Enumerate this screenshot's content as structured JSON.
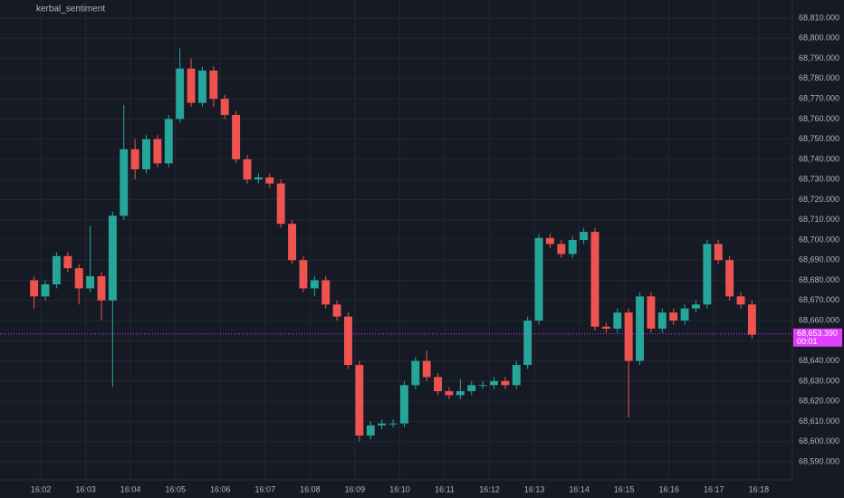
{
  "chart_data": {
    "type": "candlestick",
    "title": "kerbal_sentiment",
    "up_color": "#26a69a",
    "down_color": "#ef5350",
    "x": [
      1.85,
      2.1,
      2.35,
      2.6,
      2.85,
      3.1,
      3.35,
      3.6,
      3.85,
      4.1,
      4.35,
      4.6,
      4.85,
      5.1,
      5.35,
      5.6,
      5.85,
      6.1,
      6.35,
      6.6,
      6.85,
      7.1,
      7.35,
      7.6,
      7.85,
      8.1,
      8.35,
      8.6,
      8.85,
      9.1,
      9.35,
      9.6,
      9.85,
      10.1,
      10.35,
      10.6,
      10.85,
      11.1,
      11.35,
      11.6,
      11.85,
      12.1,
      12.35,
      12.6,
      12.85,
      13.1,
      13.35,
      13.6,
      13.85,
      14.1,
      14.35,
      14.6,
      14.85,
      15.1,
      15.35,
      15.6,
      15.85,
      16.1,
      16.35,
      16.6,
      16.85,
      17.1,
      17.35,
      17.6,
      17.85
    ],
    "open": [
      68680,
      68672,
      68678,
      68692,
      68686,
      68676,
      68682,
      68670,
      68712,
      68745,
      68735,
      68750,
      68738,
      68760,
      68785,
      68768,
      68784,
      68770,
      68762,
      68740,
      68730,
      68731,
      68728,
      68708,
      68690,
      68676,
      68680,
      68668,
      68662,
      68638,
      68603,
      68608,
      68609,
      68609,
      68628,
      68640,
      68632,
      68625,
      68623,
      68625,
      68628,
      68628,
      68630,
      68628,
      68638,
      68660,
      68701,
      68698,
      68693,
      68700,
      68704,
      68657,
      68656,
      68664,
      68640,
      68672,
      68656,
      68664,
      68660,
      68666,
      68668,
      68698,
      68690,
      68672,
      68668
    ],
    "high": [
      68682,
      68680,
      68694,
      68694,
      68688,
      68707,
      68684,
      68714,
      68767,
      68750,
      68752,
      68752,
      68762,
      68795,
      68790,
      68786,
      68786,
      68772,
      68764,
      68742,
      68733,
      68733,
      68730,
      68710,
      68692,
      68682,
      68682,
      68670,
      68664,
      68640,
      68610,
      68611,
      68611,
      68630,
      68642,
      68645,
      68634,
      68627,
      68631,
      68630,
      68630,
      68632,
      68632,
      68640,
      68662,
      68703,
      68703,
      68700,
      68702,
      68706,
      68706,
      68659,
      68666,
      68666,
      68674,
      68674,
      68666,
      68666,
      68668,
      68670,
      68700,
      68700,
      68692,
      68674,
      68670
    ],
    "low": [
      68666,
      68670,
      68676,
      68684,
      68668,
      68674,
      68660,
      68627,
      68710,
      68730,
      68733,
      68736,
      68736,
      68758,
      68766,
      68766,
      68766,
      68760,
      68738,
      68728,
      68728,
      68726,
      68706,
      68688,
      68674,
      68672,
      68666,
      68660,
      68636,
      68600,
      68601,
      68606,
      68607,
      68607,
      68626,
      68630,
      68623,
      68621,
      68621,
      68623,
      68626,
      68626,
      68626,
      68626,
      68636,
      68658,
      68696,
      68691,
      68691,
      68698,
      68655,
      68654,
      68654,
      68612,
      68638,
      68654,
      68654,
      68658,
      68658,
      68664,
      68666,
      68688,
      68670,
      68666,
      68651
    ],
    "close": [
      68672,
      68678,
      68692,
      68686,
      68676,
      68682,
      68670,
      68712,
      68745,
      68735,
      68750,
      68738,
      68760,
      68785,
      68768,
      68784,
      68770,
      68762,
      68740,
      68730,
      68731,
      68728,
      68708,
      68690,
      68676,
      68680,
      68668,
      68662,
      68638,
      68603,
      68608,
      68609,
      68609,
      68628,
      68640,
      68632,
      68625,
      68623,
      68625,
      68628,
      68628,
      68630,
      68628,
      68638,
      68660,
      68701,
      68698,
      68693,
      68700,
      68704,
      68657,
      68656,
      68664,
      68640,
      68672,
      68656,
      68664,
      68660,
      68666,
      68668,
      68698,
      68690,
      68672,
      68668,
      68653
    ],
    "xlim": [
      1.09,
      18.75
    ],
    "xticks": [
      {
        "value": 2,
        "label": "16:02"
      },
      {
        "value": 3,
        "label": "16:03"
      },
      {
        "value": 4,
        "label": "16:04"
      },
      {
        "value": 5,
        "label": "16:05"
      },
      {
        "value": 6,
        "label": "16:06"
      },
      {
        "value": 7,
        "label": "16:07"
      },
      {
        "value": 8,
        "label": "16:08"
      },
      {
        "value": 9,
        "label": "16:09"
      },
      {
        "value": 10,
        "label": "16:10"
      },
      {
        "value": 11,
        "label": "16:11"
      },
      {
        "value": 12,
        "label": "16:12"
      },
      {
        "value": 13,
        "label": "16:13"
      },
      {
        "value": 14,
        "label": "16:14"
      },
      {
        "value": 15,
        "label": "16:15"
      },
      {
        "value": 16,
        "label": "16:16"
      },
      {
        "value": 17,
        "label": "16:17"
      },
      {
        "value": 18,
        "label": "16:18"
      }
    ],
    "ylim": [
      68581,
      68819
    ],
    "yticks": [
      {
        "value": 68590,
        "label": "68,590.000"
      },
      {
        "value": 68600,
        "label": "68,600.000"
      },
      {
        "value": 68610,
        "label": "68,610.000"
      },
      {
        "value": 68620,
        "label": "68,620.000"
      },
      {
        "value": 68630,
        "label": "68,630.000"
      },
      {
        "value": 68640,
        "label": "68,640.000"
      },
      {
        "value": 68650,
        "label": "68,650.000"
      },
      {
        "value": 68660,
        "label": "68,660.000"
      },
      {
        "value": 68670,
        "label": "68,670.000"
      },
      {
        "value": 68680,
        "label": "68,680.000"
      },
      {
        "value": 68690,
        "label": "68,690.000"
      },
      {
        "value": 68700,
        "label": "68,700.000"
      },
      {
        "value": 68710,
        "label": "68,710.000"
      },
      {
        "value": 68720,
        "label": "68,720.000"
      },
      {
        "value": 68730,
        "label": "68,730.000"
      },
      {
        "value": 68740,
        "label": "68,740.000"
      },
      {
        "value": 68750,
        "label": "68,750.000"
      },
      {
        "value": 68760,
        "label": "68,760.000"
      },
      {
        "value": 68770,
        "label": "68,770.000"
      },
      {
        "value": 68780,
        "label": "68,780.000"
      },
      {
        "value": 68790,
        "label": "68,790.000"
      },
      {
        "value": 68800,
        "label": "68,800.000"
      },
      {
        "value": 68810,
        "label": "68,810.000"
      }
    ],
    "grid": true,
    "last_price": {
      "value": 68653.39,
      "label": "68,653.390",
      "color": "#e040fb"
    },
    "countdown": "00:01"
  }
}
